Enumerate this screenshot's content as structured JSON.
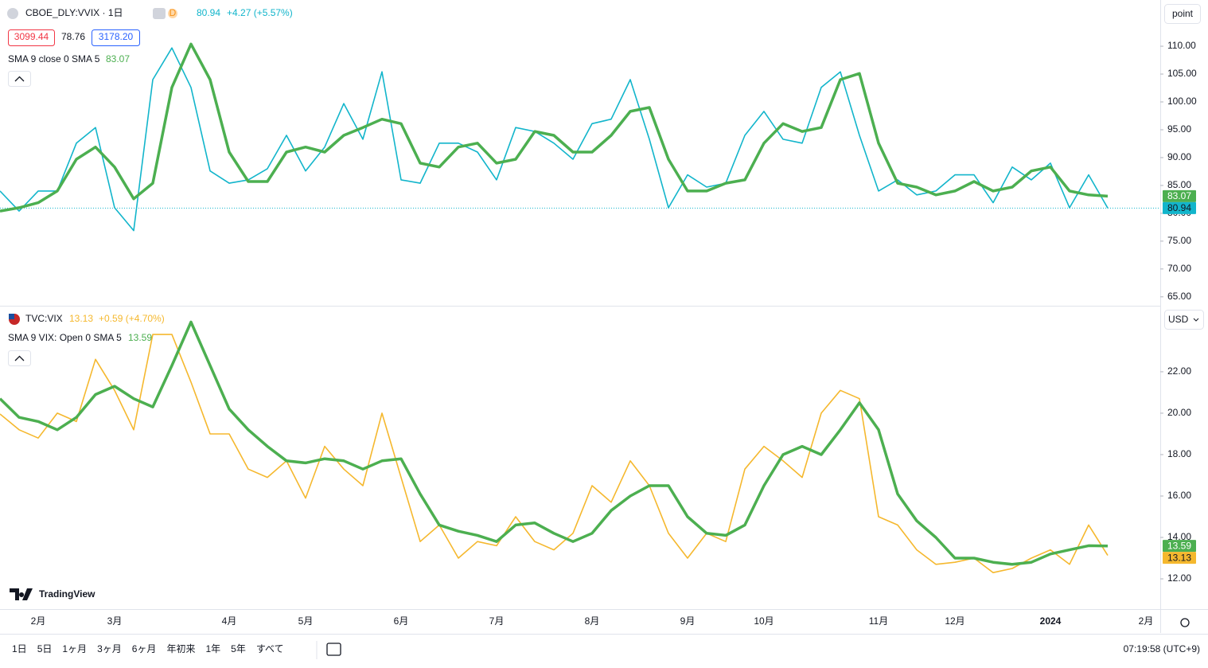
{
  "chart_data": [
    {
      "type": "line",
      "ylim": [
        63.4,
        118.3
      ],
      "yticks": [
        {
          "value": 65,
          "label": "65.00"
        },
        {
          "value": 70,
          "label": "70.00"
        },
        {
          "value": 75,
          "label": "75.00"
        },
        {
          "value": 80,
          "label": "80.00"
        },
        {
          "value": 85,
          "label": "85.00"
        },
        {
          "value": 90,
          "label": "90.00"
        },
        {
          "value": 95,
          "label": "95.00"
        },
        {
          "value": 100,
          "label": "100.00"
        },
        {
          "value": 105,
          "label": "105.00"
        },
        {
          "value": 110,
          "label": "110.00"
        }
      ],
      "price_line": true,
      "change": "+4.27 (+5.57%)",
      "scale": "point",
      "quote": {
        "bid": "3099.44",
        "spread": "78.76",
        "ask": "3178.20"
      },
      "series": [
        {
          "name": "CBOE_DLY:VVIX · 1日",
          "color": "#12b5cb",
          "values": [
            84,
            80.4,
            84,
            84,
            92.6,
            95.4,
            81,
            76.9,
            104,
            109.7,
            102.6,
            87.6,
            85.4,
            86,
            88,
            94,
            87.6,
            91.9,
            99.7,
            93.3,
            105.4,
            86,
            85.4,
            92.6,
            92.6,
            91,
            86,
            95.4,
            94.7,
            92.6,
            89.7,
            96.1,
            96.9,
            104,
            93.3,
            81,
            86.9,
            84.7,
            85.4,
            94,
            98.3,
            93.3,
            92.6,
            102.6,
            105.4,
            94,
            84,
            86,
            83.3,
            84,
            86.9,
            86.9,
            81.9,
            88.3,
            86,
            89,
            81,
            86.9,
            80.94,
            null,
            null
          ]
        },
        {
          "name": "SMA 9 close 0 SMA 5",
          "color": "#4caf50",
          "values": [
            80.4,
            81,
            81.9,
            84,
            89.7,
            91.9,
            88.3,
            82.6,
            85.4,
            102.6,
            110.4,
            104,
            91,
            85.7,
            85.7,
            91,
            91.9,
            91,
            94,
            95.4,
            96.9,
            96.1,
            89,
            88.3,
            91.9,
            92.6,
            89,
            89.7,
            94.7,
            94,
            91,
            91,
            94,
            98.3,
            99,
            89.7,
            84,
            84,
            85.4,
            86,
            92.6,
            96.1,
            94.7,
            95.4,
            104,
            105.1,
            92.6,
            85.4,
            84.7,
            83.3,
            84,
            85.7,
            84,
            84.7,
            87.6,
            88.3,
            84,
            83.3,
            83.07,
            null,
            null
          ]
        }
      ]
    },
    {
      "type": "line",
      "ylim": [
        10.54,
        25.15
      ],
      "yticks": [
        {
          "value": 12,
          "label": "12.00"
        },
        {
          "value": 14,
          "label": "14.00"
        },
        {
          "value": 16,
          "label": "16.00"
        },
        {
          "value": 18,
          "label": "18.00"
        },
        {
          "value": 20,
          "label": "20.00"
        },
        {
          "value": 22,
          "label": "22.00"
        }
      ],
      "change": "+0.59 (+4.70%)",
      "currency": "USD",
      "categories": [
        null,
        null,
        "2月",
        null,
        null,
        null,
        "3月",
        null,
        null,
        null,
        null,
        null,
        "4月",
        null,
        null,
        null,
        "5月",
        null,
        null,
        null,
        null,
        "6月",
        null,
        null,
        null,
        null,
        "7月",
        null,
        null,
        null,
        null,
        "8月",
        null,
        null,
        null,
        null,
        "9月",
        null,
        null,
        null,
        "10月",
        null,
        null,
        null,
        null,
        null,
        "11月",
        null,
        null,
        null,
        "12月",
        null,
        null,
        null,
        null,
        "2024",
        null,
        null,
        null,
        null,
        "2月"
      ],
      "series": [
        {
          "name": "TVC:VIX",
          "color": "#f5b82e",
          "values": [
            19.96,
            19.2,
            18.8,
            20,
            19.6,
            22.6,
            21.1,
            19.2,
            23.8,
            23.8,
            21.5,
            19,
            19,
            17.3,
            16.9,
            17.7,
            15.9,
            18.4,
            17.3,
            16.5,
            20,
            16.9,
            13.8,
            14.6,
            13,
            13.8,
            13.6,
            15,
            13.8,
            13.4,
            14.2,
            16.5,
            15.7,
            17.7,
            16.5,
            14.2,
            13,
            14.2,
            13.8,
            17.3,
            18.4,
            17.7,
            16.9,
            20,
            21.1,
            20.7,
            15,
            14.6,
            13.4,
            12.7,
            12.8,
            13,
            12.3,
            12.5,
            13,
            13.4,
            12.7,
            14.6,
            13.13,
            null,
            null
          ]
        },
        {
          "name": "SMA 9 VIX: Open 0 SMA 5",
          "color": "#4caf50",
          "values": [
            20.7,
            19.8,
            19.6,
            19.2,
            19.8,
            20.9,
            21.3,
            20.7,
            20.3,
            22.3,
            24.4,
            22.3,
            20.2,
            19.2,
            18.4,
            17.7,
            17.6,
            17.8,
            17.7,
            17.3,
            17.7,
            17.8,
            16.1,
            14.6,
            14.3,
            14.1,
            13.8,
            14.6,
            14.7,
            14.2,
            13.8,
            14.2,
            15.3,
            16,
            16.5,
            16.5,
            15,
            14.2,
            14.1,
            14.6,
            16.5,
            18,
            18.4,
            18,
            19.2,
            20.5,
            19.2,
            16.1,
            14.8,
            14,
            13,
            13,
            12.8,
            12.7,
            12.8,
            13.2,
            13.4,
            13.6,
            13.59,
            null,
            null
          ]
        }
      ]
    }
  ],
  "interval_badge": "D",
  "brand": "TradingView",
  "toolbar": {
    "ranges": [
      "1日",
      "5日",
      "1ヶ月",
      "3ヶ月",
      "6ヶ月",
      "年初来",
      "1年",
      "5年",
      "すべて"
    ],
    "clock": "07:19:58 (UTC+9)"
  }
}
